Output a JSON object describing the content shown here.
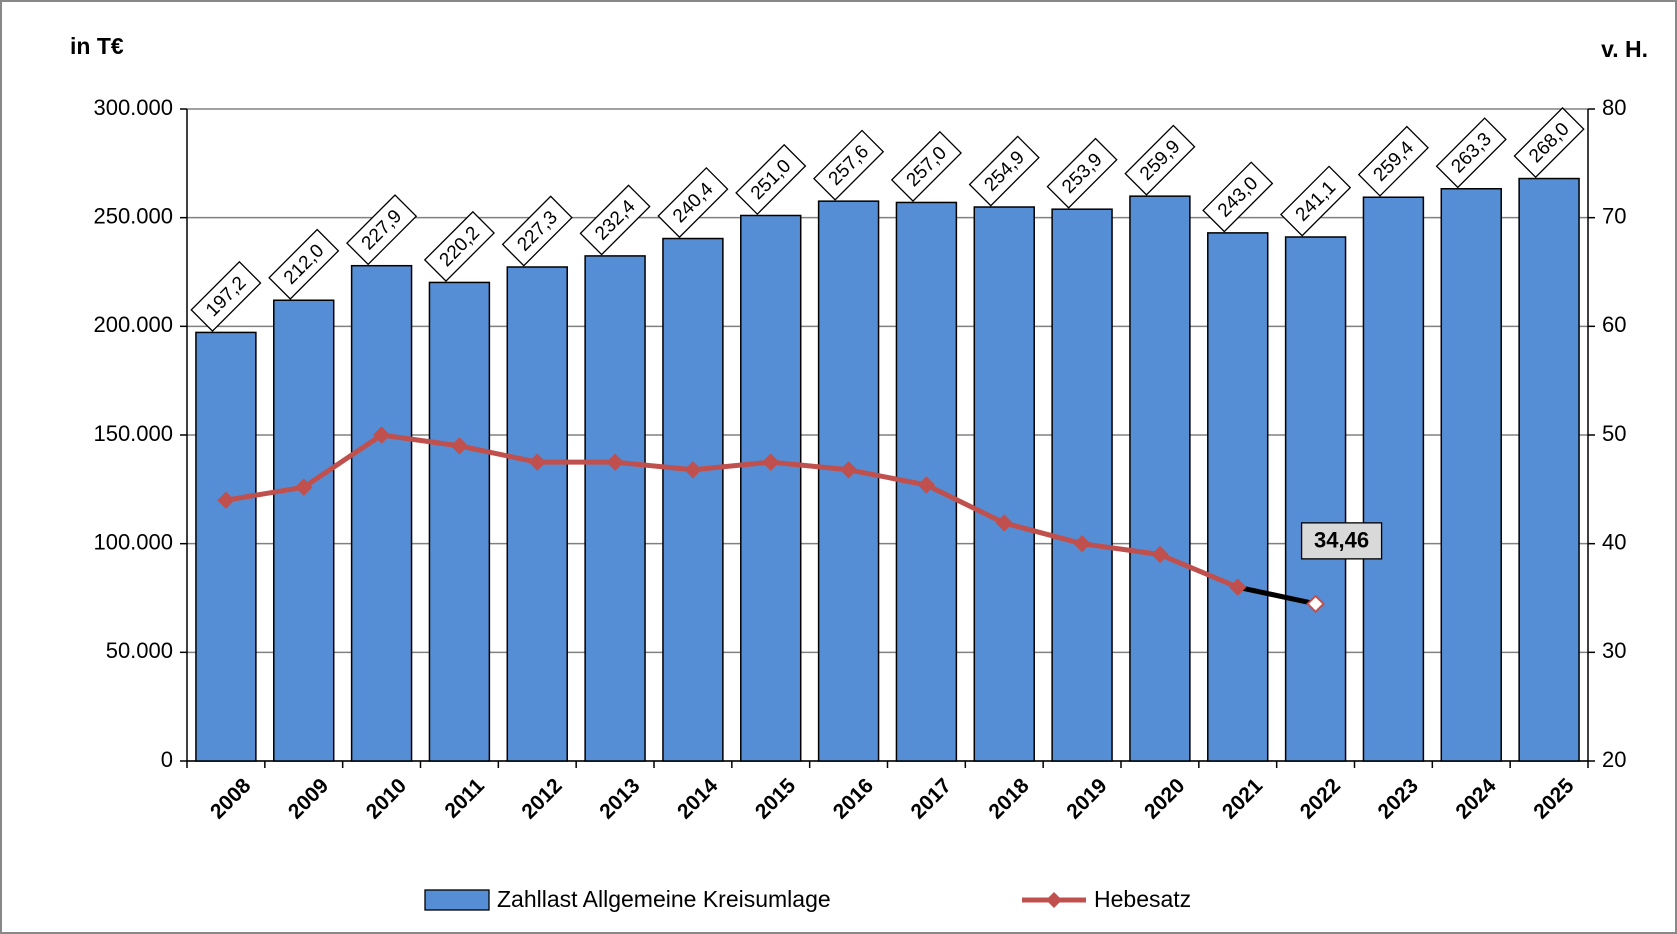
{
  "chart_data": {
    "type": "bar",
    "y_label": "in T€",
    "y2_label": "v. H.",
    "categories": [
      "2008",
      "2009",
      "2010",
      "2011",
      "2012",
      "2013",
      "2014",
      "2015",
      "2016",
      "2017",
      "2018",
      "2019",
      "2020",
      "2021",
      "2022",
      "2023",
      "2024",
      "2025"
    ],
    "series": [
      {
        "name": "Zahllast Allgemeine Kreisumlage",
        "type": "bar",
        "color": "#558ed5",
        "values": [
          197200,
          212000,
          227900,
          220200,
          227300,
          232400,
          240400,
          251000,
          257600,
          257000,
          254900,
          253900,
          259900,
          243000,
          241100,
          259400,
          263300,
          268000
        ],
        "value_labels": [
          "197,2",
          "212,0",
          "227,9",
          "220,2",
          "227,3",
          "232,4",
          "240,4",
          "251,0",
          "257,6",
          "257,0",
          "254,9",
          "253,9",
          "259,9",
          "243,0",
          "241,1",
          "259,4",
          "263,3",
          "268,0"
        ]
      },
      {
        "name": "Hebesatz",
        "type": "line",
        "axis": "y2",
        "color": "#c0504d",
        "highlight_color": "#000000",
        "values": [
          44,
          45.2,
          50,
          49,
          47.5,
          47.5,
          46.8,
          47.5,
          46.8,
          45.4,
          41.9,
          40,
          39,
          36,
          34.46,
          null,
          null,
          null
        ],
        "value_labels": [
          null,
          null,
          null,
          null,
          null,
          null,
          null,
          null,
          null,
          null,
          null,
          null,
          null,
          null,
          "34,46",
          null,
          null,
          null
        ]
      }
    ],
    "ylim": [
      0,
      300000
    ],
    "yticks": [
      0,
      {
        "value": 50000,
        "label": "50.000"
      },
      {
        "value": 100000,
        "label": "100.000"
      },
      {
        "value": 150000,
        "label": "150.000"
      },
      {
        "value": 200000,
        "label": "200.000"
      },
      {
        "value": 250000,
        "label": "250.000"
      },
      {
        "value": 300000,
        "label": "300.000"
      }
    ],
    "y2lim": [
      20,
      80
    ],
    "y2ticks": [
      20,
      30,
      40,
      50,
      60,
      70,
      80
    ],
    "grid": true
  }
}
